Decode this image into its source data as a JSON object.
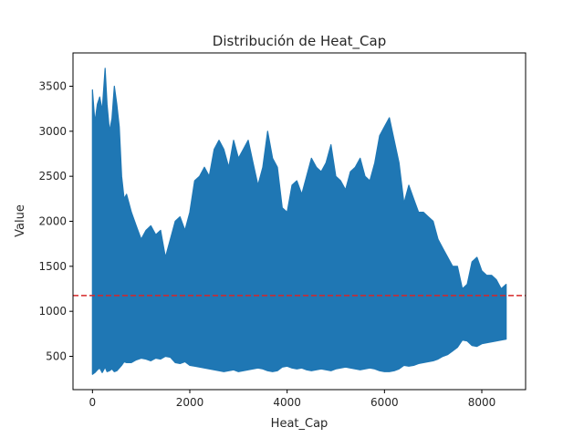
{
  "chart_data": {
    "type": "area",
    "title": "Distribución de Heat_Cap",
    "xlabel": "Heat_Cap",
    "ylabel": "Value",
    "xlim": [
      -400,
      8900
    ],
    "ylim": [
      130,
      3870
    ],
    "xticks": [
      0,
      2000,
      4000,
      6000,
      8000
    ],
    "yticks": [
      500,
      1000,
      1500,
      2000,
      2500,
      3000,
      3500
    ],
    "grid": false,
    "series": [
      {
        "color": "#1f77b4",
        "x": [
          0,
          50,
          100,
          150,
          200,
          260,
          300,
          350,
          400,
          450,
          500,
          550,
          600,
          650,
          700,
          800,
          900,
          1000,
          1100,
          1200,
          1300,
          1400,
          1500,
          1600,
          1700,
          1800,
          1900,
          2000,
          2100,
          2200,
          2300,
          2400,
          2500,
          2600,
          2700,
          2800,
          2900,
          3000,
          3100,
          3200,
          3300,
          3400,
          3500,
          3600,
          3700,
          3800,
          3900,
          4000,
          4100,
          4200,
          4300,
          4400,
          4500,
          4600,
          4700,
          4800,
          4900,
          5000,
          5100,
          5200,
          5300,
          5400,
          5500,
          5600,
          5700,
          5800,
          5900,
          6000,
          6100,
          6200,
          6300,
          6400,
          6500,
          6600,
          6700,
          6800,
          6900,
          7000,
          7100,
          7200,
          7300,
          7400,
          7500,
          7600,
          7700,
          7800,
          7900,
          8000,
          8100,
          8200,
          8300,
          8400,
          8500
        ],
        "upper": [
          3460,
          3100,
          3300,
          3380,
          3230,
          3700,
          3300,
          3000,
          3140,
          3500,
          3300,
          3050,
          2500,
          2250,
          2300,
          2100,
          1950,
          1800,
          1900,
          1950,
          1850,
          1900,
          1600,
          1800,
          2000,
          2050,
          1900,
          2100,
          2450,
          2500,
          2600,
          2500,
          2800,
          2900,
          2800,
          2600,
          2900,
          2700,
          2800,
          2900,
          2650,
          2400,
          2600,
          3000,
          2700,
          2600,
          2150,
          2100,
          2400,
          2450,
          2300,
          2500,
          2700,
          2600,
          2550,
          2650,
          2850,
          2500,
          2450,
          2350,
          2550,
          2600,
          2700,
          2500,
          2450,
          2650,
          2950,
          3050,
          3150,
          2900,
          2650,
          2200,
          2400,
          2250,
          2100,
          2100,
          2050,
          2000,
          1800,
          1700,
          1600,
          1500,
          1500,
          1250,
          1300,
          1550,
          1600,
          1450,
          1400,
          1400,
          1350,
          1250,
          1300
        ],
        "lower": [
          300,
          320,
          350,
          370,
          320,
          380,
          330,
          340,
          360,
          330,
          340,
          370,
          400,
          440,
          430,
          430,
          460,
          480,
          470,
          450,
          480,
          470,
          500,
          490,
          430,
          420,
          440,
          400,
          390,
          380,
          370,
          360,
          350,
          340,
          330,
          340,
          350,
          330,
          340,
          350,
          360,
          370,
          360,
          340,
          330,
          340,
          380,
          390,
          370,
          360,
          370,
          350,
          340,
          350,
          360,
          350,
          340,
          360,
          370,
          380,
          370,
          360,
          350,
          360,
          370,
          360,
          340,
          330,
          330,
          340,
          360,
          400,
          390,
          400,
          420,
          430,
          440,
          450,
          470,
          500,
          520,
          560,
          600,
          680,
          670,
          620,
          610,
          640,
          650,
          660,
          670,
          680,
          690
        ]
      }
    ],
    "hlines": [
      {
        "y": 1175,
        "color": "#d62728",
        "style": "dashed"
      }
    ]
  }
}
